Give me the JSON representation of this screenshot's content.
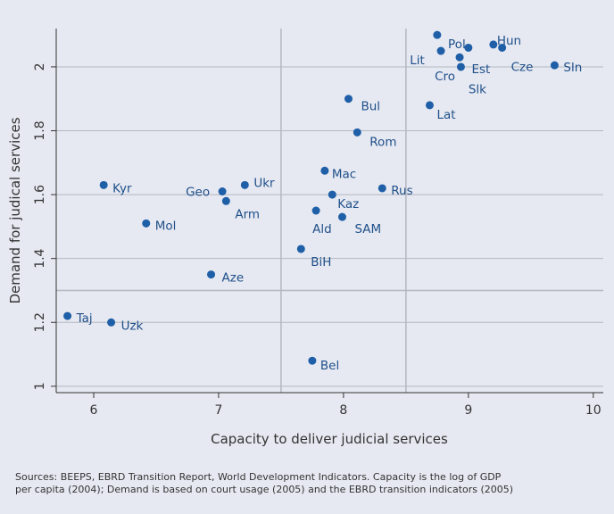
{
  "chart_data": {
    "type": "scatter",
    "x_label": "Capacity to deliver judicial services",
    "y_label": "Demand for judical services",
    "labels": [
      "Kyr",
      "Mol",
      "Taj",
      "Uzk",
      "Aze",
      "Geo",
      "Arm",
      "Ukr",
      "BiH",
      "Bel",
      "Ald",
      "Mac",
      "Kaz",
      "SAM",
      "Bul",
      "Rom",
      "Rus",
      "Lat",
      "Lit",
      "Pol",
      "Cro",
      "Est",
      "Slk",
      "Hun",
      "Cze",
      "Sln"
    ],
    "x": [
      6.08,
      6.42,
      5.79,
      6.14,
      6.94,
      7.03,
      7.06,
      7.21,
      7.66,
      7.75,
      7.78,
      7.85,
      7.91,
      7.99,
      8.04,
      8.11,
      8.31,
      8.69,
      8.75,
      8.78,
      8.93,
      8.94,
      9.0,
      9.2,
      9.27,
      9.69
    ],
    "values": [
      1.63,
      1.51,
      1.22,
      1.2,
      1.35,
      1.61,
      1.58,
      1.63,
      1.43,
      1.08,
      1.55,
      1.675,
      1.6,
      1.53,
      1.9,
      1.795,
      1.62,
      1.88,
      2.1,
      2.05,
      2.03,
      2.0,
      2.06,
      2.07,
      2.06,
      2.005
    ],
    "color": "#1f5fa8",
    "xlim": [
      5.7,
      10.08
    ],
    "ylim": [
      0.98,
      2.12
    ],
    "xticks": [
      6,
      7,
      8,
      9,
      10
    ],
    "yticks": [
      1,
      1.2,
      1.4,
      1.6,
      1.8,
      2
    ],
    "grid": true,
    "hlines": [
      1.3
    ],
    "vlines": [
      7.5,
      8.5
    ],
    "note": [
      "Sources: BEEPS, EBRD Transition Report, World Development Indicators. Capacity is the log of GDP",
      "per capita (2004); Demand is based on court usage (2005) and the EBRD transition indicators (2005)"
    ]
  }
}
